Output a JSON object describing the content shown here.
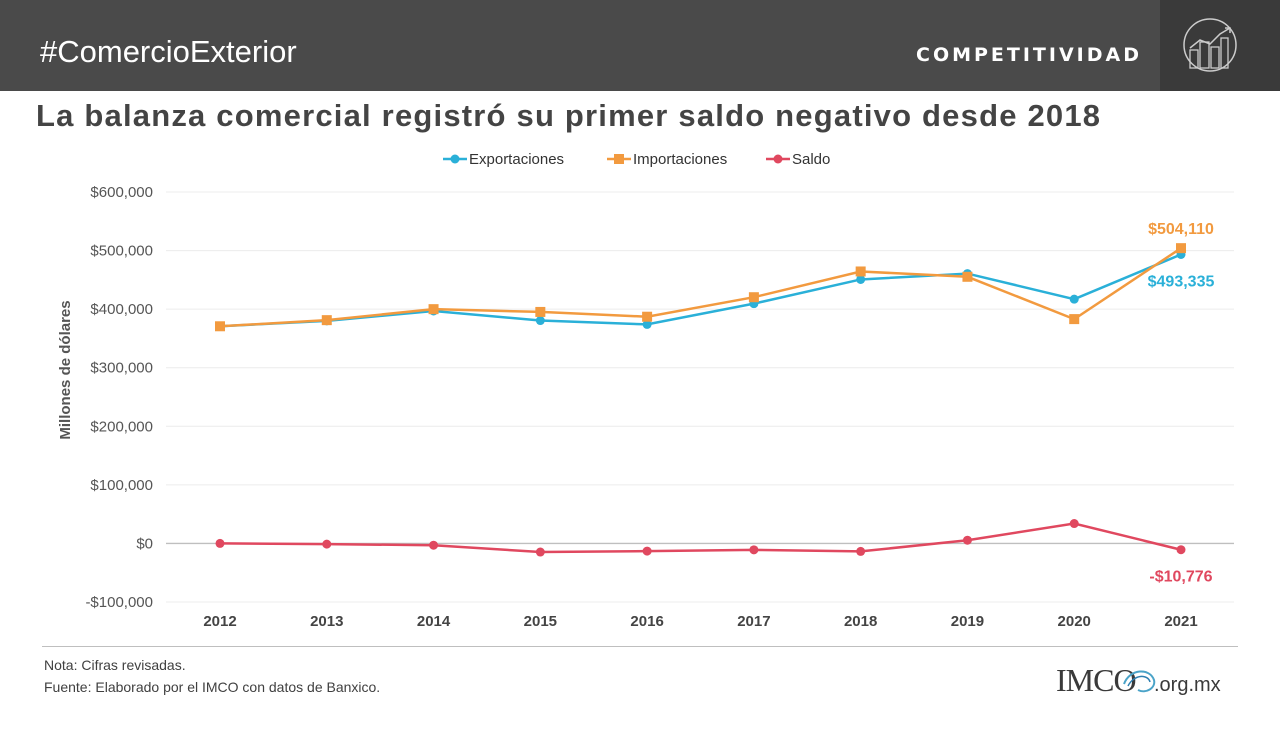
{
  "header": {
    "hashtag": "#ComercioExterior",
    "brand": "COMPETITIVIDAD"
  },
  "title": "La balanza comercial registró su primer saldo negativo desde 2018",
  "footer": {
    "note": "Nota:  Cifras revisadas.",
    "source": "Fuente: Elaborado por el IMCO con datos de Banxico.",
    "logo_text": "IMCO",
    "logo_url": ".org.mx"
  },
  "colors": {
    "exportaciones": "#2ab0d8",
    "importaciones": "#f29a3f",
    "saldo": "#e0485f"
  },
  "chart_data": {
    "type": "line",
    "ylabel": "Millones de dólares",
    "xlabel": "",
    "ylim": [
      -100000,
      600000
    ],
    "yticks": [
      -100000,
      0,
      100000,
      200000,
      300000,
      400000,
      500000,
      600000
    ],
    "ytick_labels": [
      "-$100,000",
      "$0",
      "$100,000",
      "$200,000",
      "$300,000",
      "$400,000",
      "$500,000",
      "$600,000"
    ],
    "categories": [
      "2012",
      "2013",
      "2014",
      "2015",
      "2016",
      "2017",
      "2018",
      "2019",
      "2020",
      "2021"
    ],
    "legend_position": "top",
    "grid": "horizontal",
    "series": [
      {
        "name": "Exportaciones",
        "marker": "circle",
        "color": "#2ab0d8",
        "values": [
          370770,
          380015,
          396912,
          380550,
          373939,
          409401,
          450685,
          460704,
          416999,
          493335
        ]
      },
      {
        "name": "Importaciones",
        "marker": "square",
        "color": "#f29a3f",
        "values": [
          370752,
          381210,
          399977,
          395232,
          387065,
          420369,
          464302,
          455242,
          382986,
          504110
        ]
      },
      {
        "name": "Saldo",
        "marker": "circle",
        "color": "#e0485f",
        "values": [
          18,
          -1195,
          -3065,
          -14683,
          -13125,
          -10968,
          -13618,
          5462,
          34013,
          -10776
        ]
      }
    ],
    "annotations": [
      {
        "text": "$504,110",
        "series": "Importaciones",
        "category": "2021",
        "position": "above"
      },
      {
        "text": "$493,335",
        "series": "Exportaciones",
        "category": "2021",
        "position": "below"
      },
      {
        "text": "-$10,776",
        "series": "Saldo",
        "category": "2021",
        "position": "below"
      }
    ]
  }
}
